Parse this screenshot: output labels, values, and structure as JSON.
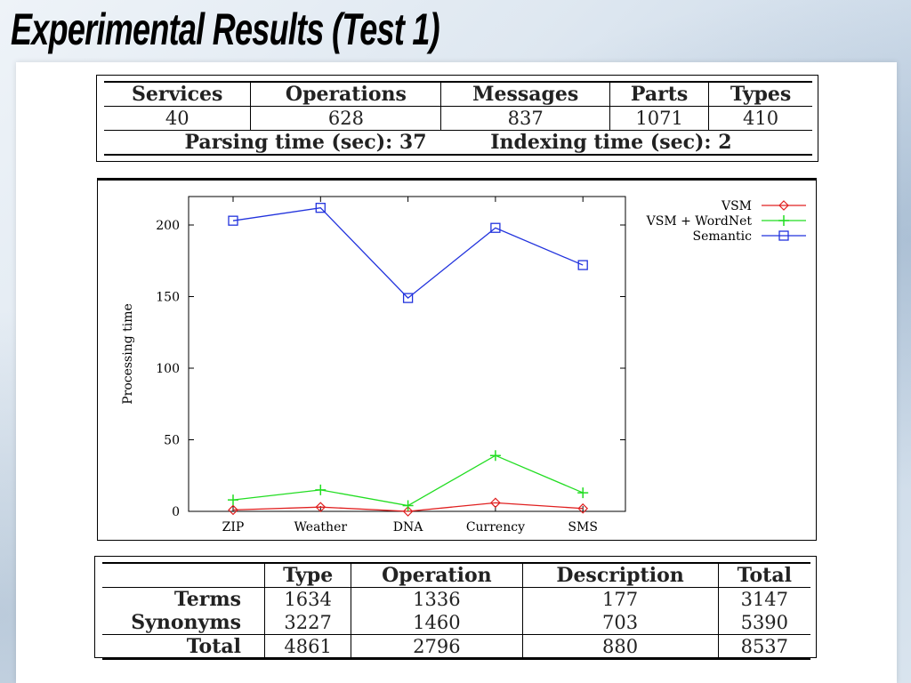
{
  "slide": {
    "title": "Experimental Results (Test 1)"
  },
  "table1": {
    "headers": [
      "Services",
      "Operations",
      "Messages",
      "Parts",
      "Types"
    ],
    "values": [
      "40",
      "628",
      "837",
      "1071",
      "410"
    ],
    "parsing_time": "Parsing time (sec): 37",
    "indexing_time": "Indexing time (sec): 2"
  },
  "table3": {
    "headers": [
      "",
      "Type",
      "Operation",
      "Description",
      "Total"
    ],
    "rows": [
      {
        "label": "Terms",
        "cells": [
          "1634",
          "1336",
          "177",
          "3147"
        ]
      },
      {
        "label": "Synonyms",
        "cells": [
          "3227",
          "1460",
          "703",
          "5390"
        ]
      },
      {
        "label": "Total",
        "cells": [
          "4861",
          "2796",
          "880",
          "8537"
        ]
      }
    ]
  },
  "chart_data": {
    "type": "line",
    "categories": [
      "ZIP",
      "Weather",
      "DNA",
      "Currency",
      "SMS"
    ],
    "ylabel": "Processing time",
    "ylim": [
      0,
      225
    ],
    "yticks": [
      0,
      50,
      100,
      150,
      200
    ],
    "legend_position": "top-right (outside plot)",
    "series": [
      {
        "name": "VSM",
        "color": "#e02020",
        "marker": "diamond",
        "values": [
          1,
          3,
          0,
          6,
          2
        ]
      },
      {
        "name": "VSM + WordNet",
        "color": "#22dd22",
        "marker": "plus",
        "values": [
          8,
          15,
          4,
          39,
          13
        ]
      },
      {
        "name": "Semantic",
        "color": "#2233dd",
        "marker": "square",
        "values": [
          203,
          212,
          149,
          198,
          172
        ]
      }
    ]
  }
}
